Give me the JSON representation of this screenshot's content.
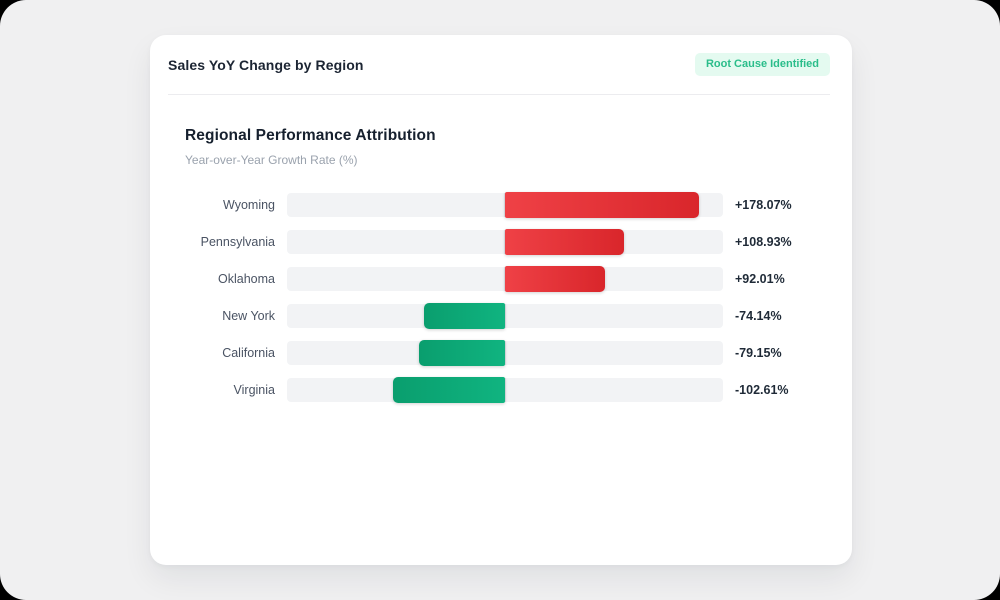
{
  "page": {
    "background": "#f0f0f1"
  },
  "card": {
    "header": {
      "title": "Sales YoY Change by Region",
      "badge": {
        "label": "Root Cause Identified",
        "bg": "#e4faf0",
        "color": "#2abd8a"
      }
    },
    "section": {
      "title": "Regional Performance Attribution",
      "subtitle": "Year-over-Year Growth Rate (%)"
    }
  },
  "chart_data": {
    "type": "bar",
    "orientation": "horizontal-diverging",
    "title": "Regional Performance Attribution",
    "xlabel": "Year-over-Year Growth Rate (%)",
    "categories": [
      "Wyoming",
      "Pennsylvania",
      "Oklahoma",
      "New York",
      "California",
      "Virginia"
    ],
    "values": [
      178.07,
      108.93,
      92.01,
      -74.14,
      -79.15,
      -102.61
    ],
    "value_labels": [
      "+178.07%",
      "+108.93%",
      "+92.01%",
      "-74.14%",
      "-79.15%",
      "-102.61%"
    ],
    "xlim": [
      -200,
      200
    ],
    "grid": false,
    "legend": "none",
    "colors": {
      "positive_gradient": [
        "#ef4146",
        "#d9262b"
      ],
      "negative_gradient": [
        "#0a9e6e",
        "#10b480"
      ],
      "track": "#f2f3f5",
      "zero_axis": "#e0e2e7",
      "value_text": "#1f2a37",
      "category_text": "#4a5363"
    }
  }
}
